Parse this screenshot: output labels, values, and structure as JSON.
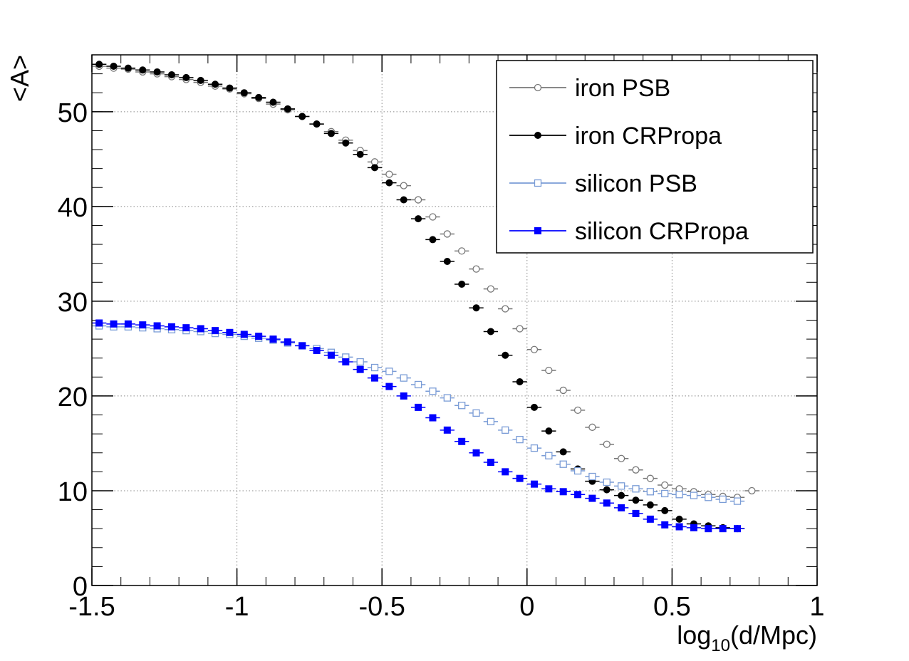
{
  "chart_data": {
    "type": "scatter",
    "title": "",
    "xlabel": "log10(d/Mpc)",
    "xlabel_parts": {
      "base": "log",
      "sub": "10",
      "rest": "(d/Mpc)"
    },
    "ylabel": "<A>",
    "xlim": [
      -1.5,
      1.0
    ],
    "ylim": [
      0,
      56
    ],
    "grid": true,
    "legend_position": "top-right",
    "x_ticks": [
      {
        "value": -1.5,
        "label": "-1.5"
      },
      {
        "value": -1.0,
        "label": "-1"
      },
      {
        "value": -0.5,
        "label": "-0.5"
      },
      {
        "value": 0.0,
        "label": "0"
      },
      {
        "value": 0.5,
        "label": "0.5"
      },
      {
        "value": 1.0,
        "label": "1"
      }
    ],
    "y_ticks": [
      {
        "value": 0,
        "label": "0"
      },
      {
        "value": 10,
        "label": "10"
      },
      {
        "value": 20,
        "label": "20"
      },
      {
        "value": 30,
        "label": "30"
      },
      {
        "value": 40,
        "label": "40"
      },
      {
        "value": 50,
        "label": "50"
      }
    ],
    "bin_width": 0.05,
    "x": [
      -1.475,
      -1.425,
      -1.375,
      -1.325,
      -1.275,
      -1.225,
      -1.175,
      -1.125,
      -1.075,
      -1.025,
      -0.975,
      -0.925,
      -0.875,
      -0.825,
      -0.775,
      -0.725,
      -0.675,
      -0.625,
      -0.575,
      -0.525,
      -0.475,
      -0.425,
      -0.375,
      -0.325,
      -0.275,
      -0.225,
      -0.175,
      -0.125,
      -0.075,
      -0.025,
      0.025,
      0.075,
      0.125,
      0.175,
      0.225,
      0.275,
      0.325,
      0.375,
      0.425,
      0.475,
      0.525,
      0.575,
      0.625,
      0.675,
      0.725,
      0.775,
      0.825,
      0.875,
      0.925,
      0.975
    ],
    "series": [
      {
        "name": "iron PSB",
        "color": "#777777",
        "marker": "open-circle",
        "values": [
          54.8,
          54.6,
          54.5,
          54.2,
          54.0,
          53.7,
          53.4,
          53.1,
          52.7,
          52.4,
          51.9,
          51.4,
          50.8,
          50.2,
          49.5,
          48.7,
          47.9,
          47.0,
          45.9,
          44.7,
          43.4,
          42.2,
          40.7,
          38.9,
          37.1,
          35.3,
          33.4,
          31.3,
          29.2,
          27.1,
          24.9,
          22.7,
          20.6,
          18.5,
          16.7,
          14.9,
          13.4,
          12.2,
          11.3,
          10.6,
          10.2,
          9.9,
          9.6,
          9.4,
          9.3,
          10.0,
          null,
          null,
          null,
          null
        ],
        "x_count": 46
      },
      {
        "name": "iron CRPropa",
        "color": "#000000",
        "marker": "filled-circle",
        "values": [
          55.0,
          54.8,
          54.6,
          54.4,
          54.2,
          53.9,
          53.6,
          53.3,
          52.9,
          52.5,
          52.0,
          51.5,
          51.0,
          50.3,
          49.5,
          48.7,
          47.7,
          46.7,
          45.5,
          44.1,
          42.5,
          40.7,
          38.7,
          36.5,
          34.2,
          31.8,
          29.3,
          26.8,
          24.3,
          21.5,
          18.8,
          16.3,
          14.1,
          12.3,
          11.0,
          10.1,
          9.5,
          9.0,
          8.5,
          7.9,
          7.0,
          6.5,
          6.3,
          6.1,
          6.0,
          null,
          null,
          null,
          null,
          null
        ],
        "x_offset": 0
      },
      {
        "name": "silicon PSB",
        "color": "#7a9cd6",
        "marker": "open-square",
        "values": [
          27.4,
          27.3,
          27.3,
          27.2,
          27.1,
          27.0,
          26.9,
          26.8,
          26.6,
          26.5,
          26.3,
          26.1,
          25.9,
          25.6,
          25.3,
          25.0,
          24.6,
          24.1,
          23.6,
          23.0,
          22.6,
          21.9,
          21.2,
          20.5,
          19.8,
          19.0,
          18.2,
          17.3,
          16.4,
          15.4,
          14.5,
          13.7,
          12.8,
          12.1,
          11.5,
          10.9,
          10.5,
          10.2,
          9.9,
          9.7,
          9.6,
          9.5,
          9.3,
          9.1,
          8.9,
          null,
          null,
          null,
          null,
          null
        ]
      },
      {
        "name": "silicon CRPropa",
        "color": "#0000ff",
        "marker": "filled-square",
        "values": [
          27.7,
          27.6,
          27.6,
          27.5,
          27.4,
          27.3,
          27.2,
          27.1,
          26.9,
          26.7,
          26.5,
          26.3,
          26.0,
          25.7,
          25.3,
          24.8,
          24.3,
          23.6,
          22.8,
          21.9,
          21.0,
          20.0,
          18.8,
          17.7,
          16.4,
          15.2,
          14.0,
          13.0,
          12.0,
          11.3,
          10.7,
          10.2,
          9.9,
          9.6,
          9.2,
          8.7,
          8.2,
          7.6,
          7.0,
          6.4,
          6.2,
          6.1,
          6.0,
          6.0,
          6.0,
          null,
          null,
          null,
          null,
          null
        ]
      }
    ]
  }
}
